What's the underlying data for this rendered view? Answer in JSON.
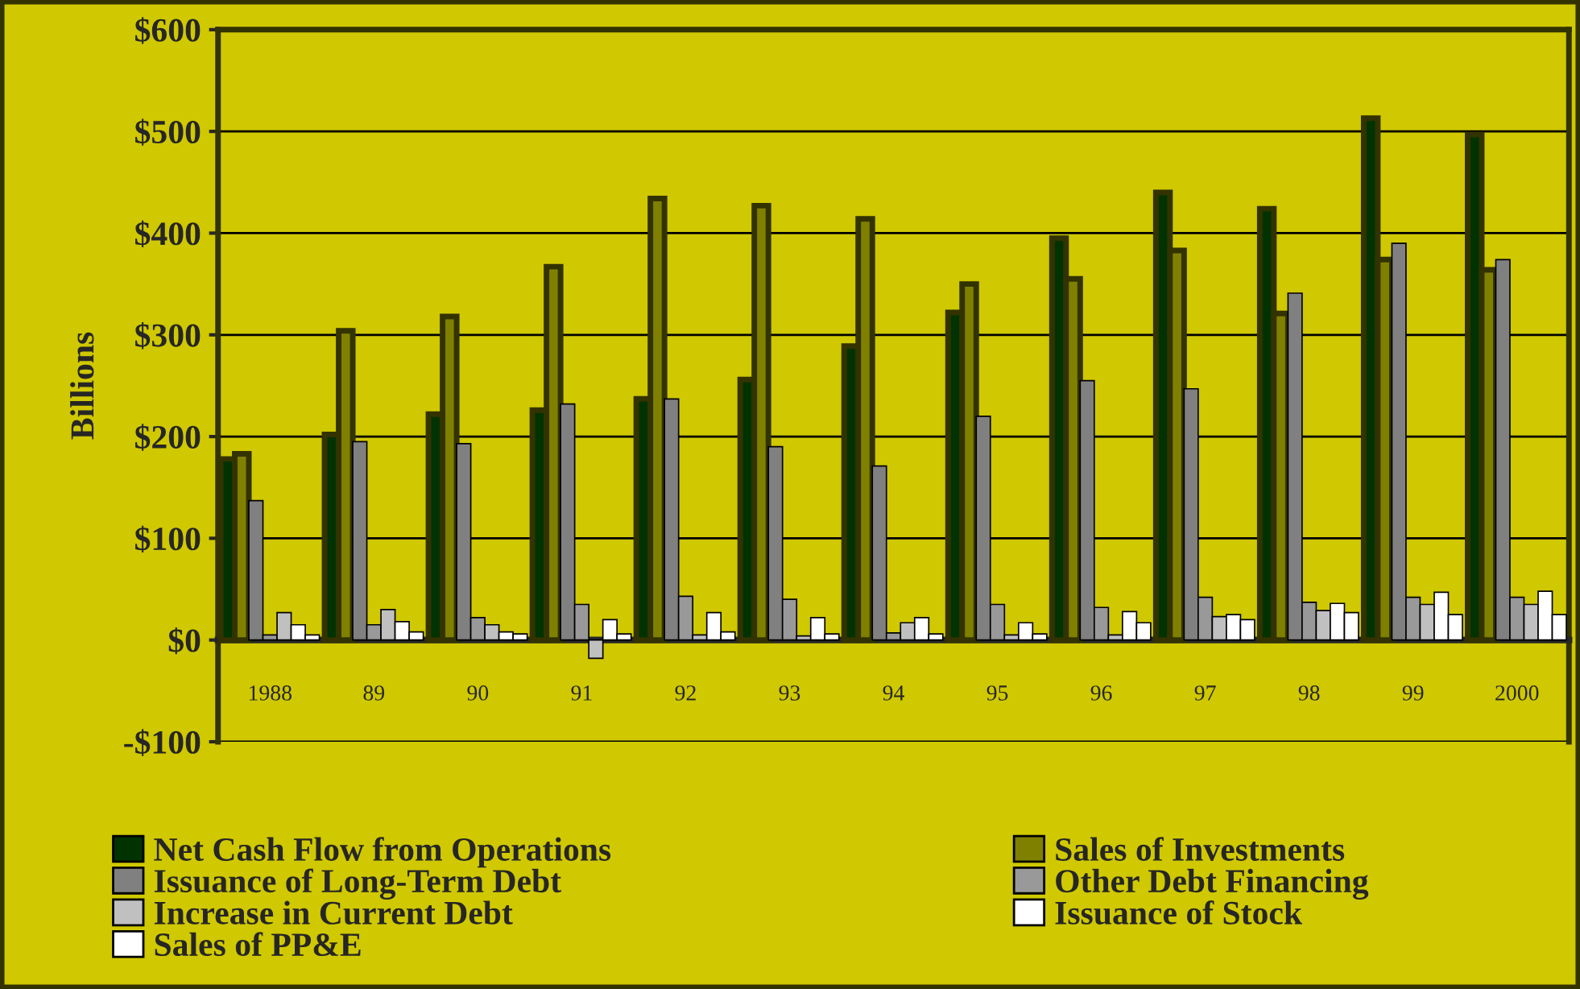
{
  "chart_data": {
    "type": "bar",
    "ylabel": "Billions",
    "categories": [
      "1988",
      "89",
      "90",
      "91",
      "92",
      "93",
      "94",
      "95",
      "96",
      "97",
      "98",
      "99",
      "2000"
    ],
    "series": [
      {
        "name": "Net Cash Flow from Operations",
        "color": "#003300",
        "values": [
          178,
          202,
          222,
          226,
          237,
          256,
          289,
          322,
          395,
          440,
          424,
          513,
          497
        ]
      },
      {
        "name": "Sales of Investments",
        "color": "#808000",
        "values": [
          183,
          304,
          318,
          367,
          434,
          427,
          414,
          350,
          355,
          383,
          321,
          374,
          364
        ]
      },
      {
        "name": "Issuance of Long-Term Debt",
        "color": "#808080",
        "values": [
          137,
          195,
          193,
          232,
          237,
          190,
          171,
          220,
          255,
          247,
          341,
          390,
          374
        ]
      },
      {
        "name": "Other Debt Financing",
        "color": "#999999",
        "values": [
          5,
          15,
          22,
          35,
          43,
          40,
          7,
          35,
          32,
          42,
          37,
          42,
          42
        ]
      },
      {
        "name": "Increase in Current Debt",
        "color": "#c0c0c0",
        "values": [
          27,
          30,
          15,
          -18,
          5,
          4,
          17,
          5,
          5,
          23,
          29,
          35,
          35
        ]
      },
      {
        "name": "Issuance of Stock",
        "color": "#ffffff",
        "values": [
          15,
          18,
          8,
          20,
          27,
          22,
          22,
          17,
          28,
          25,
          36,
          47,
          48
        ]
      },
      {
        "name": "Sales of PP&E",
        "color": "#ffffff",
        "values": [
          5,
          8,
          6,
          6,
          8,
          6,
          6,
          6,
          17,
          20,
          27,
          25,
          25
        ]
      }
    ],
    "ylim": [
      -100,
      600
    ],
    "yticks": [
      {
        "value": -100,
        "label": "-$100"
      },
      {
        "value": 0,
        "label": "$0"
      },
      {
        "value": 100,
        "label": "$100"
      },
      {
        "value": 200,
        "label": "$200"
      },
      {
        "value": 300,
        "label": "$300"
      },
      {
        "value": 400,
        "label": "$400"
      },
      {
        "value": 500,
        "label": "$500"
      },
      {
        "value": 600,
        "label": "$600"
      }
    ],
    "grid": "y",
    "legend": "bottom"
  }
}
